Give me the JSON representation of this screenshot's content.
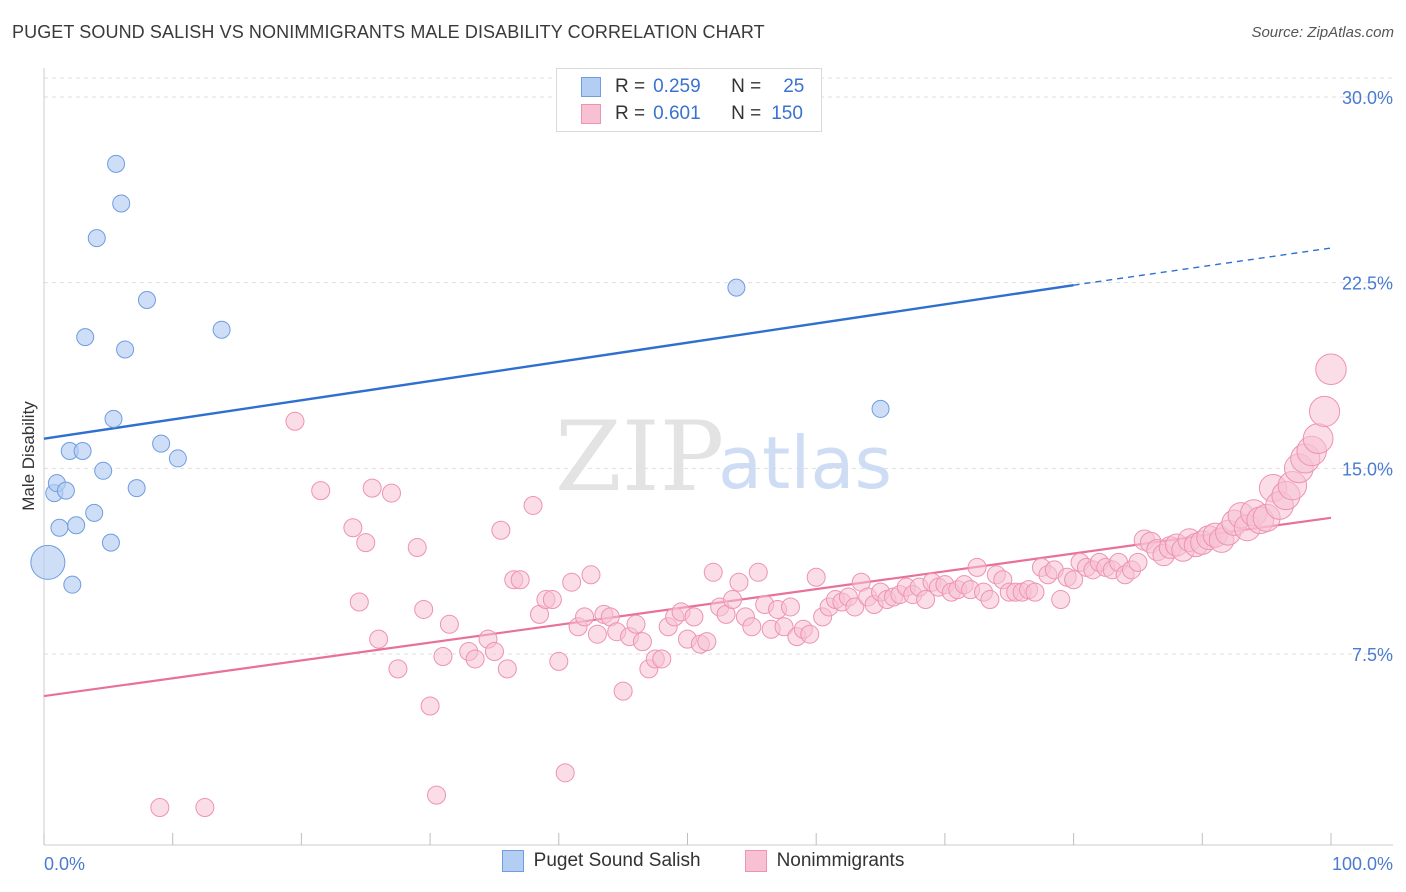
{
  "header": {
    "title": "PUGET SOUND SALISH VS NONIMMIGRANTS MALE DISABILITY CORRELATION CHART",
    "source": "Source: ZipAtlas.com"
  },
  "watermark": {
    "zip": "ZIP",
    "atlas": "atlas"
  },
  "legend": {
    "rows": [
      {
        "r_label": "R =",
        "r_value": "0.259",
        "n_label": "N =",
        "n_value": "25",
        "color": "#a9c7f0",
        "border": "#6b9be0"
      },
      {
        "r_label": "R =",
        "r_value": "0.601",
        "n_label": "N =",
        "n_value": "150",
        "color": "#f8bdd0",
        "border": "#ec86a6"
      }
    ]
  },
  "colors": {
    "blue_fill": "#b3cdf3",
    "blue_stroke": "#6f9de0",
    "blue_line": "#2f6fcf",
    "pink_fill": "#f8c1d3",
    "pink_stroke": "#ee93b0",
    "pink_line": "#e8719a",
    "grid": "#dfdfdf",
    "axis_text": "#4a7bd0"
  },
  "chart_data": {
    "type": "scatter",
    "title": "PUGET SOUND SALISH VS NONIMMIGRANTS MALE DISABILITY CORRELATION CHART",
    "xlabel": "",
    "ylabel": "Male Disability",
    "xlim": [
      0,
      100
    ],
    "ylim": [
      0,
      31
    ],
    "x_tick_labels": [
      "0.0%",
      "100.0%"
    ],
    "y_ticks": [
      7.5,
      15.0,
      22.5,
      30.0
    ],
    "y_tick_labels": [
      "7.5%",
      "15.0%",
      "22.5%",
      "30.0%"
    ],
    "grid": true,
    "legend_position": "bottom-center",
    "series": [
      {
        "name": "Puget Sound Salish",
        "r": 0.259,
        "n": 25,
        "trend": {
          "x0": 0,
          "y0": 16.2,
          "x1": 80,
          "y1": 22.4,
          "dashed_to_x": 100,
          "dashed_to_y": 23.9
        },
        "points": [
          {
            "x": 0.3,
            "y": 11.2,
            "big": true
          },
          {
            "x": 0.8,
            "y": 14.0
          },
          {
            "x": 1.0,
            "y": 14.4
          },
          {
            "x": 1.2,
            "y": 12.6
          },
          {
            "x": 1.7,
            "y": 14.1
          },
          {
            "x": 2.0,
            "y": 15.7
          },
          {
            "x": 2.2,
            "y": 10.3
          },
          {
            "x": 2.5,
            "y": 12.7
          },
          {
            "x": 3.0,
            "y": 15.7
          },
          {
            "x": 3.2,
            "y": 20.3
          },
          {
            "x": 3.9,
            "y": 13.2
          },
          {
            "x": 4.1,
            "y": 24.3
          },
          {
            "x": 4.6,
            "y": 14.9
          },
          {
            "x": 5.2,
            "y": 12.0
          },
          {
            "x": 5.4,
            "y": 17.0
          },
          {
            "x": 5.6,
            "y": 27.3
          },
          {
            "x": 6.0,
            "y": 25.7
          },
          {
            "x": 6.3,
            "y": 19.8
          },
          {
            "x": 7.2,
            "y": 14.2
          },
          {
            "x": 8.0,
            "y": 21.8
          },
          {
            "x": 9.1,
            "y": 16.0
          },
          {
            "x": 10.4,
            "y": 15.4
          },
          {
            "x": 13.8,
            "y": 20.6
          },
          {
            "x": 53.8,
            "y": 22.3
          },
          {
            "x": 65.0,
            "y": 17.4
          }
        ]
      },
      {
        "name": "Nonimmigrants",
        "r": 0.601,
        "n": 150,
        "trend": {
          "x0": 0,
          "y0": 5.8,
          "x1": 100,
          "y1": 13.0
        },
        "points": [
          {
            "x": 9.0,
            "y": 1.3
          },
          {
            "x": 12.5,
            "y": 1.3
          },
          {
            "x": 19.5,
            "y": 16.9
          },
          {
            "x": 21.5,
            "y": 14.1
          },
          {
            "x": 24.0,
            "y": 12.6
          },
          {
            "x": 24.5,
            "y": 9.6
          },
          {
            "x": 25.0,
            "y": 12.0
          },
          {
            "x": 25.5,
            "y": 14.2
          },
          {
            "x": 26.0,
            "y": 8.1
          },
          {
            "x": 27.0,
            "y": 14.0
          },
          {
            "x": 27.5,
            "y": 6.9
          },
          {
            "x": 29.0,
            "y": 11.8
          },
          {
            "x": 29.5,
            "y": 9.3
          },
          {
            "x": 30.0,
            "y": 5.4
          },
          {
            "x": 30.5,
            "y": 1.8
          },
          {
            "x": 31.0,
            "y": 7.4
          },
          {
            "x": 31.5,
            "y": 8.7
          },
          {
            "x": 33.0,
            "y": 7.6
          },
          {
            "x": 33.5,
            "y": 7.3
          },
          {
            "x": 34.5,
            "y": 8.1
          },
          {
            "x": 35.0,
            "y": 7.6
          },
          {
            "x": 35.5,
            "y": 12.5
          },
          {
            "x": 36.0,
            "y": 6.9
          },
          {
            "x": 36.5,
            "y": 10.5
          },
          {
            "x": 37.0,
            "y": 10.5
          },
          {
            "x": 38.0,
            "y": 13.5
          },
          {
            "x": 38.5,
            "y": 9.1
          },
          {
            "x": 39.0,
            "y": 9.7
          },
          {
            "x": 39.5,
            "y": 9.7
          },
          {
            "x": 40.0,
            "y": 7.2
          },
          {
            "x": 40.5,
            "y": 2.7
          },
          {
            "x": 41.0,
            "y": 10.4
          },
          {
            "x": 41.5,
            "y": 8.6
          },
          {
            "x": 42.0,
            "y": 9.0
          },
          {
            "x": 42.5,
            "y": 10.7
          },
          {
            "x": 43.0,
            "y": 8.3
          },
          {
            "x": 43.5,
            "y": 9.1
          },
          {
            "x": 44.0,
            "y": 9.0
          },
          {
            "x": 44.5,
            "y": 8.4
          },
          {
            "x": 45.0,
            "y": 6.0
          },
          {
            "x": 45.5,
            "y": 8.2
          },
          {
            "x": 46.0,
            "y": 8.7
          },
          {
            "x": 46.5,
            "y": 8.0
          },
          {
            "x": 47.0,
            "y": 6.9
          },
          {
            "x": 47.5,
            "y": 7.3
          },
          {
            "x": 48.0,
            "y": 7.3
          },
          {
            "x": 48.5,
            "y": 8.6
          },
          {
            "x": 49.0,
            "y": 9.0
          },
          {
            "x": 49.5,
            "y": 9.2
          },
          {
            "x": 50.0,
            "y": 8.1
          },
          {
            "x": 50.5,
            "y": 9.0
          },
          {
            "x": 51.0,
            "y": 7.9
          },
          {
            "x": 51.5,
            "y": 8.0
          },
          {
            "x": 52.0,
            "y": 10.8
          },
          {
            "x": 52.5,
            "y": 9.4
          },
          {
            "x": 53.0,
            "y": 9.1
          },
          {
            "x": 53.5,
            "y": 9.7
          },
          {
            "x": 54.0,
            "y": 10.4
          },
          {
            "x": 54.5,
            "y": 9.0
          },
          {
            "x": 55.0,
            "y": 8.6
          },
          {
            "x": 55.5,
            "y": 10.8
          },
          {
            "x": 56.0,
            "y": 9.5
          },
          {
            "x": 56.5,
            "y": 8.5
          },
          {
            "x": 57.0,
            "y": 9.3
          },
          {
            "x": 57.5,
            "y": 8.6
          },
          {
            "x": 58.0,
            "y": 9.4
          },
          {
            "x": 58.5,
            "y": 8.2
          },
          {
            "x": 59.0,
            "y": 8.5
          },
          {
            "x": 59.5,
            "y": 8.3
          },
          {
            "x": 60.0,
            "y": 10.6
          },
          {
            "x": 60.5,
            "y": 9.0
          },
          {
            "x": 61.0,
            "y": 9.4
          },
          {
            "x": 61.5,
            "y": 9.7
          },
          {
            "x": 62.0,
            "y": 9.6
          },
          {
            "x": 62.5,
            "y": 9.8
          },
          {
            "x": 63.0,
            "y": 9.4
          },
          {
            "x": 63.5,
            "y": 10.4
          },
          {
            "x": 64.0,
            "y": 9.8
          },
          {
            "x": 64.5,
            "y": 9.5
          },
          {
            "x": 65.0,
            "y": 10.0
          },
          {
            "x": 65.5,
            "y": 9.7
          },
          {
            "x": 66.0,
            "y": 9.8
          },
          {
            "x": 66.5,
            "y": 9.9
          },
          {
            "x": 67.0,
            "y": 10.2
          },
          {
            "x": 67.5,
            "y": 9.9
          },
          {
            "x": 68.0,
            "y": 10.2
          },
          {
            "x": 68.5,
            "y": 9.7
          },
          {
            "x": 69.0,
            "y": 10.4
          },
          {
            "x": 69.5,
            "y": 10.2
          },
          {
            "x": 70.0,
            "y": 10.3
          },
          {
            "x": 70.5,
            "y": 10.0
          },
          {
            "x": 71.0,
            "y": 10.1
          },
          {
            "x": 71.5,
            "y": 10.3
          },
          {
            "x": 72.0,
            "y": 10.1
          },
          {
            "x": 72.5,
            "y": 11.0
          },
          {
            "x": 73.0,
            "y": 10.0
          },
          {
            "x": 73.5,
            "y": 9.7
          },
          {
            "x": 74.0,
            "y": 10.7
          },
          {
            "x": 74.5,
            "y": 10.5
          },
          {
            "x": 75.0,
            "y": 10.0
          },
          {
            "x": 75.5,
            "y": 10.0
          },
          {
            "x": 76.0,
            "y": 10.0
          },
          {
            "x": 76.5,
            "y": 10.1
          },
          {
            "x": 77.0,
            "y": 10.0
          },
          {
            "x": 77.5,
            "y": 11.0
          },
          {
            "x": 78.0,
            "y": 10.7
          },
          {
            "x": 78.5,
            "y": 10.9
          },
          {
            "x": 79.0,
            "y": 9.7
          },
          {
            "x": 79.5,
            "y": 10.6
          },
          {
            "x": 80.0,
            "y": 10.5
          },
          {
            "x": 80.5,
            "y": 11.2
          },
          {
            "x": 81.0,
            "y": 11.0
          },
          {
            "x": 81.5,
            "y": 10.9
          },
          {
            "x": 82.0,
            "y": 11.2
          },
          {
            "x": 82.5,
            "y": 11.0
          },
          {
            "x": 83.0,
            "y": 10.9
          },
          {
            "x": 83.5,
            "y": 11.2
          },
          {
            "x": 84.0,
            "y": 10.7
          },
          {
            "x": 84.5,
            "y": 10.9
          },
          {
            "x": 85.0,
            "y": 11.2
          },
          {
            "x": 85.5,
            "y": 12.1
          },
          {
            "x": 86.0,
            "y": 12.0
          },
          {
            "x": 86.5,
            "y": 11.7
          },
          {
            "x": 87.0,
            "y": 11.5
          },
          {
            "x": 87.5,
            "y": 11.8
          },
          {
            "x": 88.0,
            "y": 11.9
          },
          {
            "x": 88.5,
            "y": 11.7
          },
          {
            "x": 89.0,
            "y": 12.1
          },
          {
            "x": 89.5,
            "y": 11.9
          },
          {
            "x": 90.0,
            "y": 12.0
          },
          {
            "x": 90.5,
            "y": 12.2
          },
          {
            "x": 91.0,
            "y": 12.3
          },
          {
            "x": 91.5,
            "y": 12.1
          },
          {
            "x": 92.0,
            "y": 12.4
          },
          {
            "x": 92.5,
            "y": 12.8
          },
          {
            "x": 93.0,
            "y": 13.1
          },
          {
            "x": 93.5,
            "y": 12.6
          },
          {
            "x": 94.0,
            "y": 13.2
          },
          {
            "x": 94.5,
            "y": 12.9
          },
          {
            "x": 95.0,
            "y": 13.0
          },
          {
            "x": 95.5,
            "y": 14.2
          },
          {
            "x": 96.0,
            "y": 13.5
          },
          {
            "x": 96.5,
            "y": 13.9
          },
          {
            "x": 97.0,
            "y": 14.3
          },
          {
            "x": 97.5,
            "y": 15.0
          },
          {
            "x": 98.0,
            "y": 15.4
          },
          {
            "x": 98.5,
            "y": 15.7
          },
          {
            "x": 99.0,
            "y": 16.2
          },
          {
            "x": 99.5,
            "y": 17.3
          },
          {
            "x": 100.0,
            "y": 19.0
          }
        ]
      }
    ]
  },
  "bottom_legend": [
    {
      "label": "Puget Sound Salish"
    },
    {
      "label": "Nonimmigrants"
    }
  ]
}
